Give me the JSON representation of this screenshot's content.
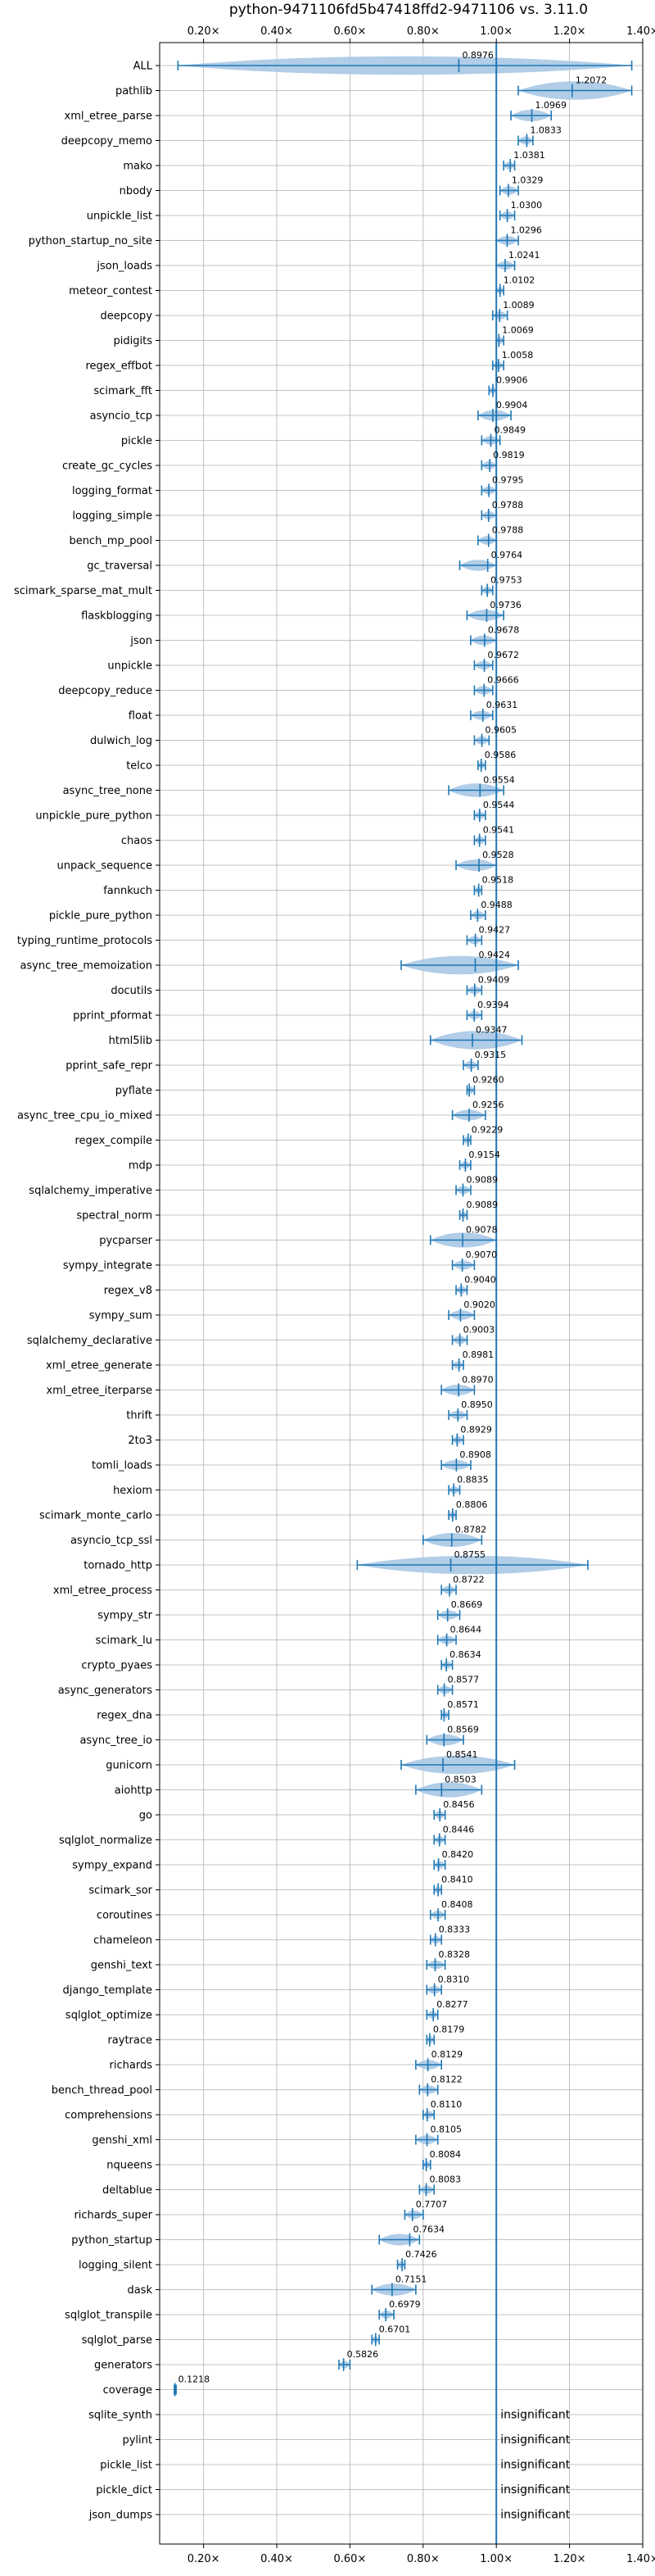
{
  "chart_data": {
    "type": "violin",
    "title": "python-9471106fd5b47418ffd2-9471106 vs. 3.11.0",
    "xlabel": "",
    "ylabel": "",
    "xlim": [
      0.08,
      1.4
    ],
    "x_ticks": [
      0.2,
      0.4,
      0.6,
      0.8,
      1.0,
      1.2,
      1.4
    ],
    "x_tick_labels": [
      "0.20×",
      "0.40×",
      "0.60×",
      "0.80×",
      "1.00×",
      "1.20×",
      "1.40×"
    ],
    "reference_line": 1.0,
    "grid": true,
    "colors": {
      "accent": "#1f77b4",
      "violin": "#a9c8e4",
      "grid": "#b0b0b0",
      "axis": "#000000"
    },
    "benchmarks": [
      {
        "name": "ALL",
        "mean": 0.8976,
        "label": "0.8976",
        "min": 0.13,
        "max": 1.37
      },
      {
        "name": "pathlib",
        "mean": 1.2072,
        "label": "1.2072",
        "min": 1.06,
        "max": 1.37
      },
      {
        "name": "xml_etree_parse",
        "mean": 1.0969,
        "label": "1.0969",
        "min": 1.04,
        "max": 1.15
      },
      {
        "name": "deepcopy_memo",
        "mean": 1.0833,
        "label": "1.0833",
        "min": 1.06,
        "max": 1.1
      },
      {
        "name": "mako",
        "mean": 1.0381,
        "label": "1.0381",
        "min": 1.02,
        "max": 1.05
      },
      {
        "name": "nbody",
        "mean": 1.0329,
        "label": "1.0329",
        "min": 1.01,
        "max": 1.06
      },
      {
        "name": "unpickle_list",
        "mean": 1.03,
        "label": "1.0300",
        "min": 1.01,
        "max": 1.05
      },
      {
        "name": "python_startup_no_site",
        "mean": 1.0296,
        "label": "1.0296",
        "min": 1.0,
        "max": 1.06
      },
      {
        "name": "json_loads",
        "mean": 1.0241,
        "label": "1.0241",
        "min": 1.0,
        "max": 1.05
      },
      {
        "name": "meteor_contest",
        "mean": 1.0102,
        "label": "1.0102",
        "min": 1.0,
        "max": 1.02
      },
      {
        "name": "deepcopy",
        "mean": 1.0089,
        "label": "1.0089",
        "min": 0.99,
        "max": 1.03
      },
      {
        "name": "pidigits",
        "mean": 1.0069,
        "label": "1.0069",
        "min": 1.0,
        "max": 1.02
      },
      {
        "name": "regex_effbot",
        "mean": 1.0058,
        "label": "1.0058",
        "min": 0.99,
        "max": 1.02
      },
      {
        "name": "scimark_fft",
        "mean": 0.9906,
        "label": "0.9906",
        "min": 0.98,
        "max": 1.0
      },
      {
        "name": "asyncio_tcp",
        "mean": 0.9904,
        "label": "0.9904",
        "min": 0.95,
        "max": 1.04
      },
      {
        "name": "pickle",
        "mean": 0.9849,
        "label": "0.9849",
        "min": 0.96,
        "max": 1.01
      },
      {
        "name": "create_gc_cycles",
        "mean": 0.9819,
        "label": "0.9819",
        "min": 0.96,
        "max": 1.0
      },
      {
        "name": "logging_format",
        "mean": 0.9795,
        "label": "0.9795",
        "min": 0.96,
        "max": 1.0
      },
      {
        "name": "logging_simple",
        "mean": 0.9788,
        "label": "0.9788",
        "min": 0.96,
        "max": 1.0
      },
      {
        "name": "bench_mp_pool",
        "mean": 0.9788,
        "label": "0.9788",
        "min": 0.95,
        "max": 1.0
      },
      {
        "name": "gc_traversal",
        "mean": 0.9764,
        "label": "0.9764",
        "min": 0.9,
        "max": 1.0
      },
      {
        "name": "scimark_sparse_mat_mult",
        "mean": 0.9753,
        "label": "0.9753",
        "min": 0.96,
        "max": 0.99
      },
      {
        "name": "flaskblogging",
        "mean": 0.9736,
        "label": "0.9736",
        "min": 0.92,
        "max": 1.02
      },
      {
        "name": "json",
        "mean": 0.9678,
        "label": "0.9678",
        "min": 0.93,
        "max": 1.0
      },
      {
        "name": "unpickle",
        "mean": 0.9672,
        "label": "0.9672",
        "min": 0.94,
        "max": 0.99
      },
      {
        "name": "deepcopy_reduce",
        "mean": 0.9666,
        "label": "0.9666",
        "min": 0.94,
        "max": 0.99
      },
      {
        "name": "float",
        "mean": 0.9631,
        "label": "0.9631",
        "min": 0.93,
        "max": 0.99
      },
      {
        "name": "dulwich_log",
        "mean": 0.9605,
        "label": "0.9605",
        "min": 0.94,
        "max": 0.98
      },
      {
        "name": "telco",
        "mean": 0.9586,
        "label": "0.9586",
        "min": 0.95,
        "max": 0.97
      },
      {
        "name": "async_tree_none",
        "mean": 0.9554,
        "label": "0.9554",
        "min": 0.87,
        "max": 1.02
      },
      {
        "name": "unpickle_pure_python",
        "mean": 0.9544,
        "label": "0.9544",
        "min": 0.94,
        "max": 0.97
      },
      {
        "name": "chaos",
        "mean": 0.9541,
        "label": "0.9541",
        "min": 0.94,
        "max": 0.97
      },
      {
        "name": "unpack_sequence",
        "mean": 0.9528,
        "label": "0.9528",
        "min": 0.89,
        "max": 1.0
      },
      {
        "name": "fannkuch",
        "mean": 0.9518,
        "label": "0.9518",
        "min": 0.94,
        "max": 0.96
      },
      {
        "name": "pickle_pure_python",
        "mean": 0.9488,
        "label": "0.9488",
        "min": 0.93,
        "max": 0.97
      },
      {
        "name": "typing_runtime_protocols",
        "mean": 0.9427,
        "label": "0.9427",
        "min": 0.92,
        "max": 0.96
      },
      {
        "name": "async_tree_memoization",
        "mean": 0.9424,
        "label": "0.9424",
        "min": 0.74,
        "max": 1.06
      },
      {
        "name": "docutils",
        "mean": 0.9409,
        "label": "0.9409",
        "min": 0.92,
        "max": 0.96
      },
      {
        "name": "pprint_pformat",
        "mean": 0.9394,
        "label": "0.9394",
        "min": 0.92,
        "max": 0.96
      },
      {
        "name": "html5lib",
        "mean": 0.9347,
        "label": "0.9347",
        "min": 0.82,
        "max": 1.07
      },
      {
        "name": "pprint_safe_repr",
        "mean": 0.9315,
        "label": "0.9315",
        "min": 0.91,
        "max": 0.95
      },
      {
        "name": "pyflate",
        "mean": 0.926,
        "label": "0.9260",
        "min": 0.92,
        "max": 0.94
      },
      {
        "name": "async_tree_cpu_io_mixed",
        "mean": 0.9256,
        "label": "0.9256",
        "min": 0.88,
        "max": 0.97
      },
      {
        "name": "regex_compile",
        "mean": 0.9229,
        "label": "0.9229",
        "min": 0.91,
        "max": 0.93
      },
      {
        "name": "mdp",
        "mean": 0.9154,
        "label": "0.9154",
        "min": 0.9,
        "max": 0.93
      },
      {
        "name": "sqlalchemy_imperative",
        "mean": 0.9089,
        "label": "0.9089",
        "min": 0.89,
        "max": 0.93
      },
      {
        "name": "spectral_norm",
        "mean": 0.9089,
        "label": "0.9089",
        "min": 0.9,
        "max": 0.92
      },
      {
        "name": "pycparser",
        "mean": 0.9078,
        "label": "0.9078",
        "min": 0.82,
        "max": 1.0
      },
      {
        "name": "sympy_integrate",
        "mean": 0.907,
        "label": "0.9070",
        "min": 0.88,
        "max": 0.94
      },
      {
        "name": "regex_v8",
        "mean": 0.904,
        "label": "0.9040",
        "min": 0.89,
        "max": 0.92
      },
      {
        "name": "sympy_sum",
        "mean": 0.902,
        "label": "0.9020",
        "min": 0.87,
        "max": 0.94
      },
      {
        "name": "sqlalchemy_declarative",
        "mean": 0.9003,
        "label": "0.9003",
        "min": 0.88,
        "max": 0.92
      },
      {
        "name": "xml_etree_generate",
        "mean": 0.8981,
        "label": "0.8981",
        "min": 0.88,
        "max": 0.91
      },
      {
        "name": "xml_etree_iterparse",
        "mean": 0.897,
        "label": "0.8970",
        "min": 0.85,
        "max": 0.94
      },
      {
        "name": "thrift",
        "mean": 0.895,
        "label": "0.8950",
        "min": 0.87,
        "max": 0.92
      },
      {
        "name": "2to3",
        "mean": 0.8929,
        "label": "0.8929",
        "min": 0.88,
        "max": 0.91
      },
      {
        "name": "tomli_loads",
        "mean": 0.8908,
        "label": "0.8908",
        "min": 0.85,
        "max": 0.93
      },
      {
        "name": "hexiom",
        "mean": 0.8835,
        "label": "0.8835",
        "min": 0.87,
        "max": 0.9
      },
      {
        "name": "scimark_monte_carlo",
        "mean": 0.8806,
        "label": "0.8806",
        "min": 0.87,
        "max": 0.89
      },
      {
        "name": "asyncio_tcp_ssl",
        "mean": 0.8782,
        "label": "0.8782",
        "min": 0.8,
        "max": 0.96
      },
      {
        "name": "tornado_http",
        "mean": 0.8755,
        "label": "0.8755",
        "min": 0.62,
        "max": 1.25
      },
      {
        "name": "xml_etree_process",
        "mean": 0.8722,
        "label": "0.8722",
        "min": 0.85,
        "max": 0.89
      },
      {
        "name": "sympy_str",
        "mean": 0.8669,
        "label": "0.8669",
        "min": 0.84,
        "max": 0.9
      },
      {
        "name": "scimark_lu",
        "mean": 0.8644,
        "label": "0.8644",
        "min": 0.84,
        "max": 0.89
      },
      {
        "name": "crypto_pyaes",
        "mean": 0.8634,
        "label": "0.8634",
        "min": 0.85,
        "max": 0.88
      },
      {
        "name": "async_generators",
        "mean": 0.8577,
        "label": "0.8577",
        "min": 0.84,
        "max": 0.88
      },
      {
        "name": "regex_dna",
        "mean": 0.8571,
        "label": "0.8571",
        "min": 0.85,
        "max": 0.87
      },
      {
        "name": "async_tree_io",
        "mean": 0.8569,
        "label": "0.8569",
        "min": 0.81,
        "max": 0.91
      },
      {
        "name": "gunicorn",
        "mean": 0.8541,
        "label": "0.8541",
        "min": 0.74,
        "max": 1.05
      },
      {
        "name": "aiohttp",
        "mean": 0.8503,
        "label": "0.8503",
        "min": 0.78,
        "max": 0.96
      },
      {
        "name": "go",
        "mean": 0.8456,
        "label": "0.8456",
        "min": 0.83,
        "max": 0.86
      },
      {
        "name": "sqlglot_normalize",
        "mean": 0.8446,
        "label": "0.8446",
        "min": 0.83,
        "max": 0.86
      },
      {
        "name": "sympy_expand",
        "mean": 0.842,
        "label": "0.8420",
        "min": 0.83,
        "max": 0.86
      },
      {
        "name": "scimark_sor",
        "mean": 0.841,
        "label": "0.8410",
        "min": 0.83,
        "max": 0.85
      },
      {
        "name": "coroutines",
        "mean": 0.8408,
        "label": "0.8408",
        "min": 0.82,
        "max": 0.86
      },
      {
        "name": "chameleon",
        "mean": 0.8333,
        "label": "0.8333",
        "min": 0.82,
        "max": 0.85
      },
      {
        "name": "genshi_text",
        "mean": 0.8328,
        "label": "0.8328",
        "min": 0.81,
        "max": 0.86
      },
      {
        "name": "django_template",
        "mean": 0.831,
        "label": "0.8310",
        "min": 0.81,
        "max": 0.85
      },
      {
        "name": "sqlglot_optimize",
        "mean": 0.8277,
        "label": "0.8277",
        "min": 0.81,
        "max": 0.84
      },
      {
        "name": "raytrace",
        "mean": 0.8179,
        "label": "0.8179",
        "min": 0.81,
        "max": 0.83
      },
      {
        "name": "richards",
        "mean": 0.8129,
        "label": "0.8129",
        "min": 0.78,
        "max": 0.85
      },
      {
        "name": "bench_thread_pool",
        "mean": 0.8122,
        "label": "0.8122",
        "min": 0.79,
        "max": 0.84
      },
      {
        "name": "comprehensions",
        "mean": 0.811,
        "label": "0.8110",
        "min": 0.8,
        "max": 0.83
      },
      {
        "name": "genshi_xml",
        "mean": 0.8105,
        "label": "0.8105",
        "min": 0.78,
        "max": 0.84
      },
      {
        "name": "nqueens",
        "mean": 0.8084,
        "label": "0.8084",
        "min": 0.8,
        "max": 0.82
      },
      {
        "name": "deltablue",
        "mean": 0.8083,
        "label": "0.8083",
        "min": 0.79,
        "max": 0.83
      },
      {
        "name": "richards_super",
        "mean": 0.7707,
        "label": "0.7707",
        "min": 0.75,
        "max": 0.8
      },
      {
        "name": "python_startup",
        "mean": 0.7634,
        "label": "0.7634",
        "min": 0.68,
        "max": 0.79
      },
      {
        "name": "logging_silent",
        "mean": 0.7426,
        "label": "0.7426",
        "min": 0.73,
        "max": 0.75
      },
      {
        "name": "dask",
        "mean": 0.7151,
        "label": "0.7151",
        "min": 0.66,
        "max": 0.78
      },
      {
        "name": "sqlglot_transpile",
        "mean": 0.6979,
        "label": "0.6979",
        "min": 0.68,
        "max": 0.72
      },
      {
        "name": "sqlglot_parse",
        "mean": 0.6701,
        "label": "0.6701",
        "min": 0.66,
        "max": 0.68
      },
      {
        "name": "generators",
        "mean": 0.5826,
        "label": "0.5826",
        "min": 0.57,
        "max": 0.6
      },
      {
        "name": "coverage",
        "mean": 0.1218,
        "label": "0.1218",
        "min": 0.12,
        "max": 0.125
      },
      {
        "name": "sqlite_synth",
        "insignificant": true,
        "label": "insignificant"
      },
      {
        "name": "pylint",
        "insignificant": true,
        "label": "insignificant"
      },
      {
        "name": "pickle_list",
        "insignificant": true,
        "label": "insignificant"
      },
      {
        "name": "pickle_dict",
        "insignificant": true,
        "label": "insignificant"
      },
      {
        "name": "json_dumps",
        "insignificant": true,
        "label": "insignificant"
      }
    ]
  }
}
